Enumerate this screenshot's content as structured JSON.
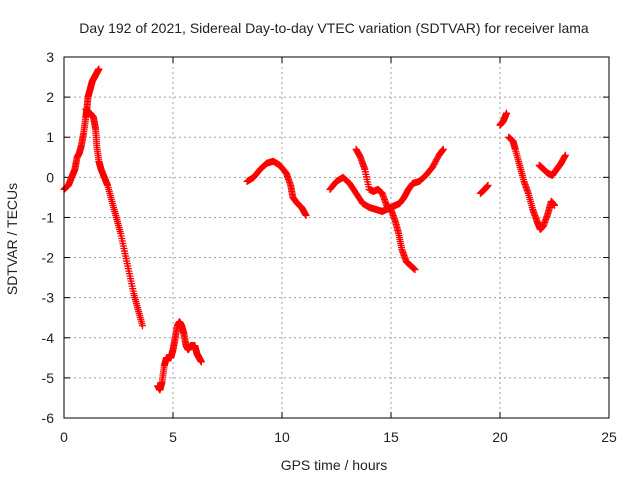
{
  "chart_data": {
    "type": "scatter",
    "title": "Day 192 of 2021, Sidereal Day-to-day VTEC variation (SDTVAR) for receiver lama",
    "xlabel": "GPS time / hours",
    "ylabel": "SDTVAR / TECUs",
    "xlim": [
      0,
      25
    ],
    "ylim": [
      -6,
      3
    ],
    "xticks": [
      "0",
      "5",
      "10",
      "15",
      "20",
      "25"
    ],
    "yticks": [
      "-6",
      "-5",
      "-4",
      "-3",
      "-2",
      "-1",
      "0",
      "1",
      "2",
      "3"
    ],
    "grid": true,
    "marker": "plus",
    "color": "#ff0000",
    "series": [
      {
        "segments": [
          [
            [
              0.0,
              -0.3
            ],
            [
              0.2,
              -0.2
            ],
            [
              0.35,
              0.0
            ],
            [
              0.5,
              0.2
            ],
            [
              0.6,
              0.5
            ],
            [
              0.7,
              0.6
            ],
            [
              0.8,
              0.8
            ],
            [
              0.9,
              1.1
            ],
            [
              1.0,
              1.5
            ],
            [
              1.05,
              1.7
            ],
            [
              1.1,
              2.0
            ],
            [
              1.2,
              2.2
            ],
            [
              1.3,
              2.4
            ],
            [
              1.4,
              2.5
            ],
            [
              1.5,
              2.6
            ],
            [
              1.6,
              2.7
            ]
          ],
          [
            [
              1.0,
              1.7
            ],
            [
              1.2,
              1.6
            ],
            [
              1.35,
              1.5
            ],
            [
              1.45,
              1.2
            ],
            [
              1.5,
              0.8
            ],
            [
              1.6,
              0.4
            ],
            [
              1.7,
              0.2
            ],
            [
              1.85,
              0.0
            ],
            [
              2.0,
              -0.2
            ],
            [
              2.2,
              -0.6
            ],
            [
              2.4,
              -1.0
            ],
            [
              2.6,
              -1.4
            ],
            [
              2.8,
              -1.9
            ],
            [
              3.0,
              -2.4
            ],
            [
              3.2,
              -2.9
            ],
            [
              3.4,
              -3.3
            ],
            [
              3.6,
              -3.7
            ]
          ],
          [
            [
              4.3,
              -5.2
            ],
            [
              4.4,
              -5.3
            ],
            [
              4.5,
              -5.1
            ],
            [
              4.6,
              -4.7
            ],
            [
              4.7,
              -4.5
            ],
            [
              4.8,
              -4.5
            ],
            [
              4.9,
              -4.5
            ],
            [
              5.0,
              -4.3
            ],
            [
              5.1,
              -4.0
            ],
            [
              5.2,
              -3.7
            ],
            [
              5.3,
              -3.6
            ],
            [
              5.4,
              -3.7
            ],
            [
              5.5,
              -3.9
            ],
            [
              5.6,
              -4.2
            ],
            [
              5.7,
              -4.3
            ],
            [
              5.8,
              -4.2
            ],
            [
              5.9,
              -4.2
            ],
            [
              6.0,
              -4.2
            ],
            [
              6.1,
              -4.4
            ],
            [
              6.2,
              -4.5
            ],
            [
              6.3,
              -4.6
            ]
          ],
          [
            [
              8.4,
              -0.1
            ],
            [
              8.7,
              0.0
            ],
            [
              9.0,
              0.2
            ],
            [
              9.3,
              0.35
            ],
            [
              9.6,
              0.4
            ],
            [
              9.9,
              0.3
            ],
            [
              10.2,
              0.1
            ],
            [
              10.4,
              -0.2
            ],
            [
              10.5,
              -0.5
            ],
            [
              10.7,
              -0.65
            ],
            [
              10.9,
              -0.75
            ],
            [
              11.1,
              -0.95
            ]
          ],
          [
            [
              12.2,
              -0.3
            ],
            [
              12.5,
              -0.1
            ],
            [
              12.8,
              0.0
            ],
            [
              13.1,
              -0.15
            ],
            [
              13.4,
              -0.4
            ],
            [
              13.7,
              -0.65
            ],
            [
              14.0,
              -0.75
            ],
            [
              14.3,
              -0.8
            ],
            [
              14.6,
              -0.85
            ],
            [
              14.8,
              -0.8
            ],
            [
              15.0,
              -0.75
            ],
            [
              15.2,
              -0.7
            ],
            [
              15.4,
              -0.65
            ],
            [
              15.6,
              -0.5
            ],
            [
              15.8,
              -0.3
            ],
            [
              16.0,
              -0.15
            ],
            [
              16.3,
              -0.1
            ],
            [
              16.6,
              0.05
            ],
            [
              16.9,
              0.25
            ],
            [
              17.2,
              0.55
            ],
            [
              17.4,
              0.7
            ]
          ],
          [
            [
              13.4,
              0.7
            ],
            [
              13.6,
              0.5
            ],
            [
              13.8,
              0.2
            ],
            [
              14.0,
              -0.3
            ],
            [
              14.2,
              -0.35
            ],
            [
              14.4,
              -0.3
            ],
            [
              14.6,
              -0.4
            ],
            [
              14.8,
              -0.7
            ],
            [
              15.0,
              -0.8
            ],
            [
              15.2,
              -1.1
            ],
            [
              15.35,
              -1.4
            ],
            [
              15.5,
              -1.8
            ],
            [
              15.7,
              -2.1
            ],
            [
              15.9,
              -2.2
            ],
            [
              16.1,
              -2.3
            ]
          ],
          [
            [
              19.1,
              -0.4
            ],
            [
              19.3,
              -0.3
            ],
            [
              19.45,
              -0.2
            ]
          ],
          [
            [
              20.0,
              1.3
            ],
            [
              20.15,
              1.4
            ],
            [
              20.3,
              1.6
            ]
          ],
          [
            [
              20.4,
              1.0
            ],
            [
              20.6,
              0.9
            ],
            [
              20.7,
              0.7
            ],
            [
              20.9,
              0.3
            ],
            [
              21.1,
              -0.1
            ],
            [
              21.3,
              -0.4
            ],
            [
              21.5,
              -0.8
            ],
            [
              21.7,
              -1.1
            ],
            [
              21.85,
              -1.3
            ],
            [
              22.0,
              -1.2
            ],
            [
              22.2,
              -0.9
            ],
            [
              22.35,
              -0.6
            ],
            [
              22.5,
              -0.7
            ]
          ],
          [
            [
              21.8,
              0.3
            ],
            [
              22.0,
              0.2
            ],
            [
              22.2,
              0.1
            ],
            [
              22.4,
              0.05
            ],
            [
              22.6,
              0.2
            ],
            [
              22.8,
              0.35
            ],
            [
              23.0,
              0.55
            ]
          ]
        ]
      }
    ]
  }
}
